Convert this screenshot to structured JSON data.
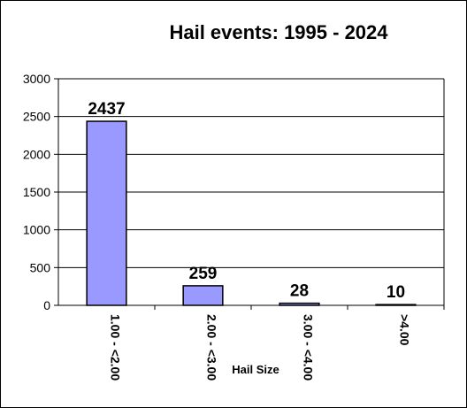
{
  "chart_data": {
    "type": "bar",
    "title": "Hail events: 1995 - 2024",
    "xlabel": "Hail Size",
    "ylabel": "",
    "categories": [
      "1.00 - <2.00",
      "2.00 - <3.00",
      "3.00 - <4.00",
      ">4.00"
    ],
    "values": [
      2437,
      259,
      28,
      10
    ],
    "data_labels": [
      "2437",
      "259",
      "28",
      "10"
    ],
    "yticks": [
      "0",
      "500",
      "1000",
      "1500",
      "2000",
      "2500",
      "3000"
    ],
    "ylim": [
      0,
      3000
    ],
    "ytick_step": 500,
    "grid": true,
    "legend": "none",
    "colors": {
      "bar_fill": "#9999ff",
      "bar_stroke": "#000000",
      "grid": "#000000",
      "background": "#ffffff"
    }
  }
}
